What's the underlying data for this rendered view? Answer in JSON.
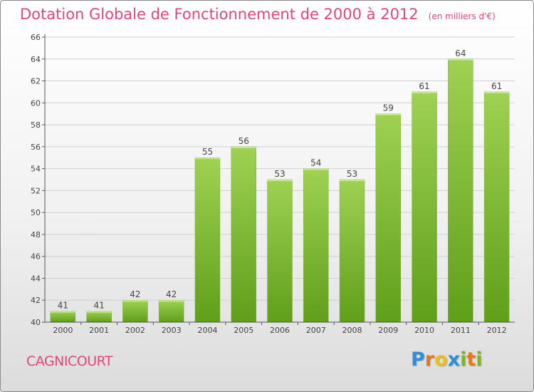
{
  "title": "Dotation Globale de Fonctionnement de 2000 à 2012",
  "unit_label": "(en milliers d'€)",
  "commune": "CAGNICOURT",
  "logo": {
    "text": "Proxiti",
    "letter_colors": [
      "#2f8fd6",
      "#e8771b",
      "#e8c01b",
      "#2f8fd6",
      "#79b829",
      "#e8771b",
      "#79b829"
    ]
  },
  "colors": {
    "title": "#e0457b",
    "bar_top": "#9fd153",
    "bar_bottom": "#5f9f1a",
    "grid": "#cfcfcf"
  },
  "chart_data": {
    "type": "bar",
    "categories": [
      "2000",
      "2001",
      "2002",
      "2003",
      "2004",
      "2005",
      "2006",
      "2007",
      "2008",
      "2009",
      "2010",
      "2011",
      "2012"
    ],
    "values": [
      41,
      41,
      42,
      42,
      55,
      56,
      53,
      54,
      53,
      59,
      61,
      64,
      61
    ],
    "value_labels": [
      "41",
      "41",
      "42",
      "42",
      "55",
      "56",
      "53",
      "54",
      "53",
      "59",
      "61",
      "64",
      "61"
    ],
    "yticks": [
      40,
      42,
      44,
      46,
      48,
      50,
      52,
      54,
      56,
      58,
      60,
      62,
      64,
      66
    ],
    "ylim": [
      40,
      66
    ],
    "grid": true,
    "legend": "none"
  }
}
